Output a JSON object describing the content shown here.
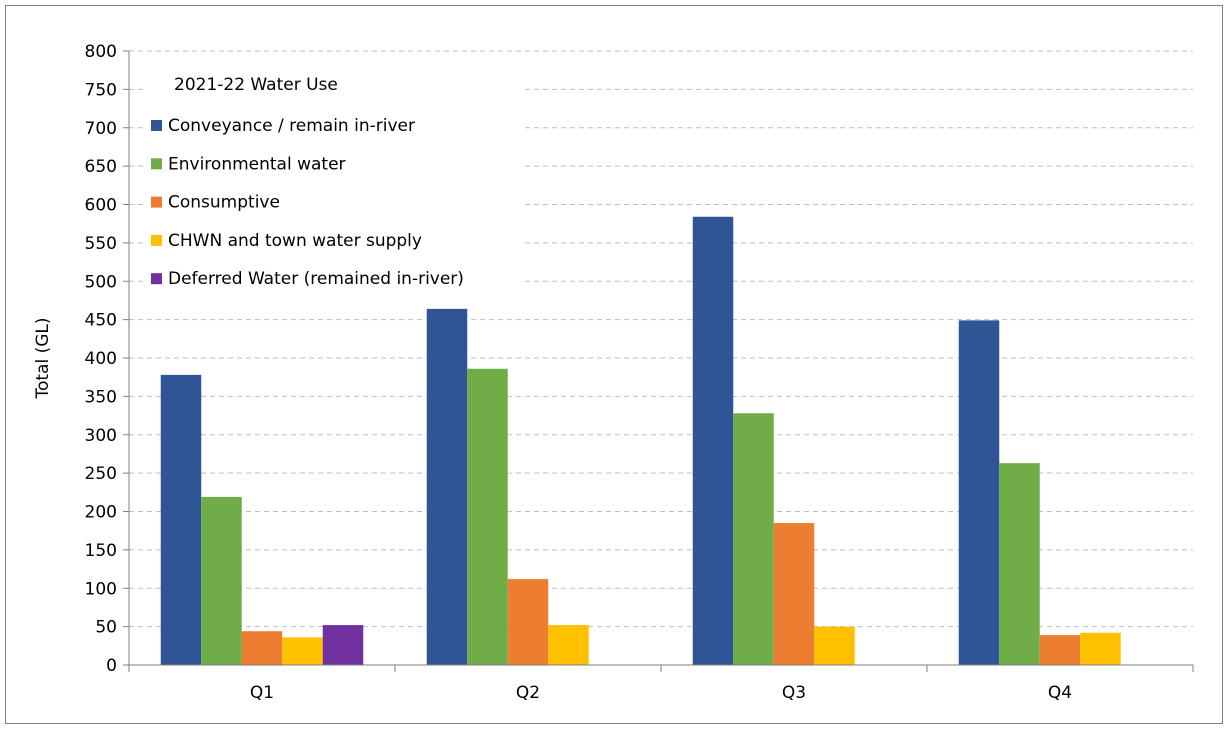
{
  "chart_data": {
    "type": "bar",
    "title": "",
    "xlabel": "",
    "ylabel": "Total (GL)",
    "ylim": [
      0,
      800
    ],
    "ytick_step": 50,
    "grid": "dashed horizontal",
    "legend_title": "2021-22 Water Use",
    "legend_position": "top-left",
    "categories": [
      "Q1",
      "Q2",
      "Q3",
      "Q4"
    ],
    "series": [
      {
        "name": "Conveyance / remain in-river",
        "color": "#2f5597",
        "values": [
          378,
          464,
          584,
          449
        ]
      },
      {
        "name": "Environmental water",
        "color": "#70ad47",
        "values": [
          219,
          386,
          328,
          263
        ]
      },
      {
        "name": "Consumptive",
        "color": "#ed7d31",
        "values": [
          44,
          112,
          185,
          39
        ]
      },
      {
        "name": "CHWN and town water supply",
        "color": "#ffc000",
        "values": [
          36,
          52,
          50,
          42
        ]
      },
      {
        "name": "Deferred Water (remained in-river)",
        "color": "#7030a0",
        "values": [
          52,
          0,
          0,
          0
        ]
      }
    ]
  }
}
